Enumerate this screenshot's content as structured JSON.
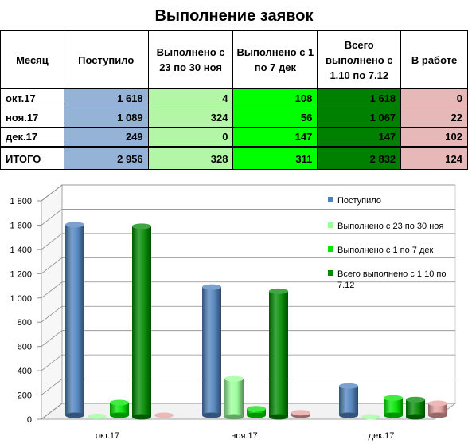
{
  "title": "Выполнение заявок",
  "table": {
    "headers": [
      "Месяц",
      "Поступило",
      "Выполнено с 23 по 30 ноя",
      "Выполнено с 1 по 7 дек",
      "Всего выполнено с 1.10 по 7.12",
      "В работе"
    ],
    "rows": [
      [
        "окт.17",
        "1 618",
        "4",
        "108",
        "1 618",
        "0"
      ],
      [
        "ноя.17",
        "1 089",
        "324",
        "56",
        "1 067",
        "22"
      ],
      [
        "дек.17",
        "249",
        "0",
        "147",
        "147",
        "102"
      ]
    ],
    "total": [
      "ИТОГО",
      "2 956",
      "328",
      "311",
      "2 832",
      "124"
    ]
  },
  "colors": {
    "received": "#95b3d7",
    "nov_done": "#b3f7a6",
    "dec_done": "#00ff00",
    "total_done": "#008000",
    "in_work": "#e6b8b7"
  },
  "chart_data": {
    "type": "bar",
    "categories": [
      "окт.17",
      "ноя.17",
      "дек.17"
    ],
    "series": [
      {
        "name": "Поступило",
        "values": [
          1618,
          1089,
          249
        ],
        "color": "#4f81bd"
      },
      {
        "name": "Выполнено с  23 по 30 ноя",
        "values": [
          4,
          324,
          0
        ],
        "color": "#99ff99"
      },
      {
        "name": "Выполнено с 1 по 7 дек",
        "values": [
          108,
          56,
          147
        ],
        "color": "#00e600"
      },
      {
        "name": "Всего выполнено     с 1.10 по 7.12",
        "values": [
          1618,
          1067,
          147
        ],
        "color": "#008a00"
      },
      {
        "name": "",
        "values": [
          0,
          22,
          102
        ],
        "color": "#e6a0a0"
      }
    ],
    "yticks": [
      "0",
      "200",
      "400",
      "600",
      "800",
      "1 000",
      "1 200",
      "1 400",
      "1 600",
      "1 800"
    ],
    "ylim": [
      0,
      1800
    ],
    "grid": true,
    "legend": "right"
  }
}
